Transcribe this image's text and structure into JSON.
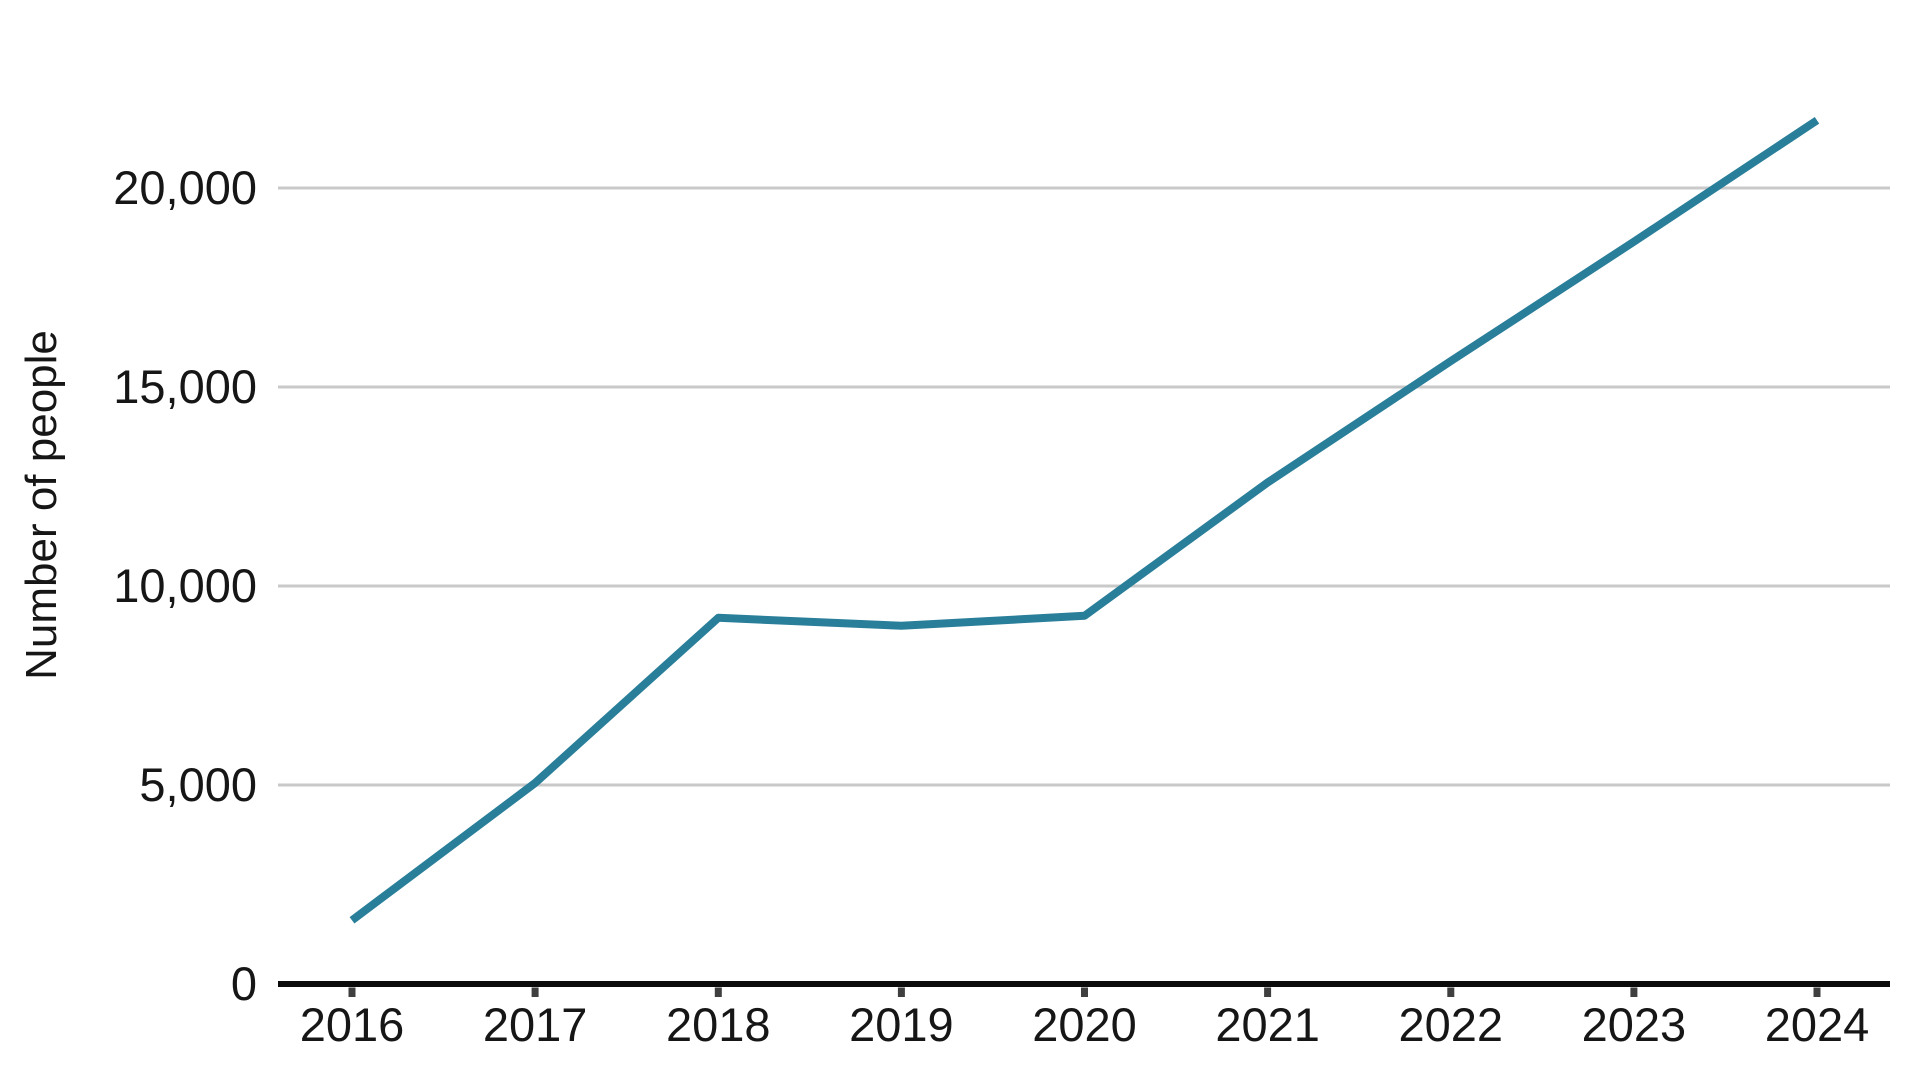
{
  "chart_data": {
    "type": "line",
    "categories": [
      "2016",
      "2017",
      "2018",
      "2019",
      "2020",
      "2021",
      "2022",
      "2023",
      "2024"
    ],
    "series": [
      {
        "name": "Number of people",
        "values": [
          1600,
          5050,
          9200,
          9000,
          9250,
          12600,
          15650,
          18650,
          21700
        ]
      }
    ],
    "title": "",
    "xlabel": "",
    "ylabel": "Number of people",
    "ylim": [
      0,
      22000
    ],
    "yticks": [
      {
        "value": 0,
        "label": "0"
      },
      {
        "value": 5000,
        "label": "5,000"
      },
      {
        "value": 10000,
        "label": "10,000"
      },
      {
        "value": 15000,
        "label": "15,000"
      },
      {
        "value": 20000,
        "label": "20,000"
      }
    ],
    "gridlines": [
      5000,
      10000,
      15000,
      20000
    ],
    "grid": "horizontal-only",
    "legend": "none",
    "colors": {
      "line": "#297e99",
      "gridline": "#c9c9c9",
      "axis": "#0b0b0b",
      "tick_mark": "#3f3f3f",
      "text": "#161616"
    }
  }
}
